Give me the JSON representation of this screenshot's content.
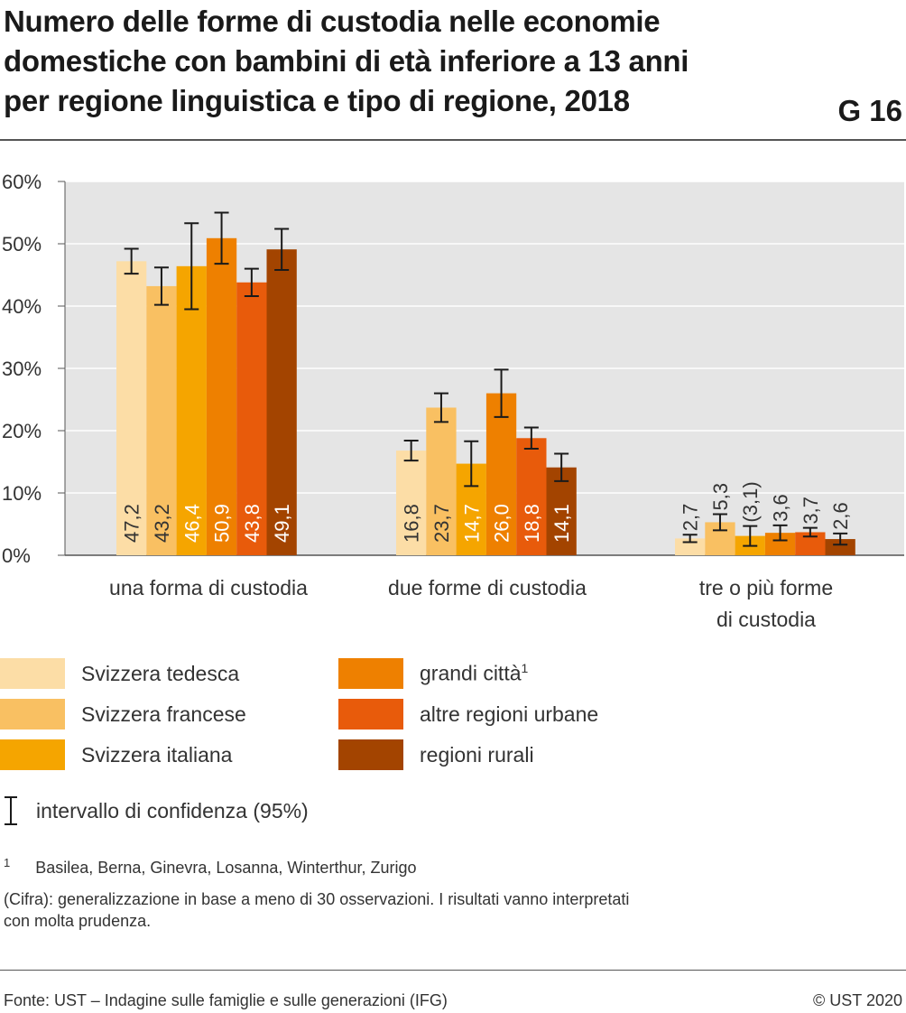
{
  "title": {
    "line1": "Numero delle forme di custodia nelle economie",
    "line2": "domestiche con bambini di età inferiore a 13 anni",
    "line3": "per regione linguistica e tipo di regione, 2018",
    "code": "G 16"
  },
  "chart_data": {
    "type": "bar",
    "categories": [
      [
        "una forma di custodia"
      ],
      [
        "due forme di custodia"
      ],
      [
        "tre o più forme",
        "di custodia"
      ]
    ],
    "ylim": [
      0,
      60
    ],
    "yticks": [
      "0%",
      "10%",
      "20%",
      "30%",
      "40%",
      "50%",
      "60%"
    ],
    "grid": true,
    "series": [
      {
        "name": "Svizzera tedesca",
        "color": "#FCDDA6",
        "values": [
          47.2,
          16.8,
          2.7
        ],
        "ci_low": [
          45.2,
          15.2,
          2.1
        ],
        "ci_high": [
          49.2,
          18.4,
          3.3
        ],
        "labels": [
          "47,2",
          "16,8",
          "2,7"
        ]
      },
      {
        "name": "Svizzera francese",
        "color": "#F9C062",
        "values": [
          43.2,
          23.7,
          5.3
        ],
        "ci_low": [
          40.2,
          21.4,
          4.0
        ],
        "ci_high": [
          46.2,
          26.0,
          6.6
        ],
        "labels": [
          "43,2",
          "23,7",
          "5,3"
        ]
      },
      {
        "name": "Svizzera italiana",
        "color": "#F5A500",
        "values": [
          46.4,
          14.7,
          3.1
        ],
        "ci_low": [
          39.5,
          11.1,
          1.5
        ],
        "ci_high": [
          53.3,
          18.3,
          4.7
        ],
        "labels": [
          "46,4",
          "14,7",
          "(3,1)"
        ]
      },
      {
        "name": "grandi città",
        "color": "#EE8000",
        "values": [
          50.9,
          26.0,
          3.6
        ],
        "ci_low": [
          46.8,
          22.2,
          2.4
        ],
        "ci_high": [
          55.0,
          29.8,
          4.8
        ],
        "labels": [
          "50,9",
          "26,0",
          "3,6"
        ]
      },
      {
        "name": "altre regioni urbane",
        "color": "#E85B0B",
        "values": [
          43.8,
          18.8,
          3.7
        ],
        "ci_low": [
          41.6,
          17.1,
          3.0
        ],
        "ci_high": [
          46.0,
          20.5,
          4.4
        ],
        "labels": [
          "43,8",
          "18,8",
          "3,7"
        ]
      },
      {
        "name": "regioni rurali",
        "color": "#A34400",
        "values": [
          49.1,
          14.1,
          2.6
        ],
        "ci_low": [
          45.8,
          11.9,
          1.7
        ],
        "ci_high": [
          52.4,
          16.3,
          3.5
        ],
        "labels": [
          "49,1",
          "14,1",
          "2,6"
        ]
      }
    ]
  },
  "legend": {
    "items": [
      {
        "label": "Svizzera tedesca",
        "color": "#FCDDA6"
      },
      {
        "label": "Svizzera francese",
        "color": "#F9C062"
      },
      {
        "label": "Svizzera italiana",
        "color": "#F5A500"
      },
      {
        "label": "grandi città",
        "sup": "1",
        "color": "#EE8000"
      },
      {
        "label": "altre regioni urbane",
        "color": "#E85B0B"
      },
      {
        "label": "regioni rurali",
        "color": "#A34400"
      }
    ],
    "ci_label": "intervallo di confidenza (95%)"
  },
  "notes": {
    "footnote_mark": "1",
    "footnote": "Basilea, Berna, Ginevra, Losanna, Winterthur, Zurigo",
    "cifra_line1": "(Cifra): generalizzazione in base a meno di 30 osservazioni. I risultati vanno interpretati",
    "cifra_line2": "con molta prudenza."
  },
  "footer": {
    "source": "Fonte: UST – Indagine sulle famiglie e sulle generazioni (IFG)",
    "copyright": "© UST 2020"
  }
}
